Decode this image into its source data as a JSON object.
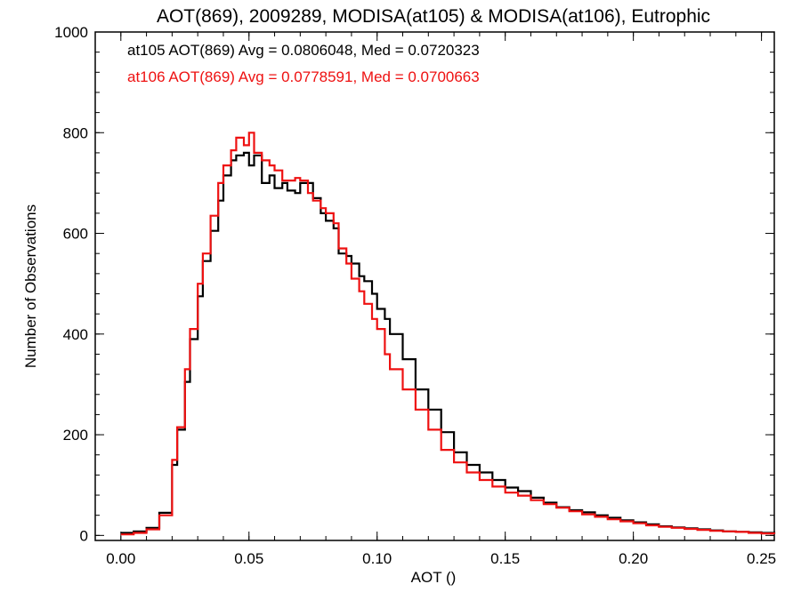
{
  "chart_data": {
    "type": "line",
    "step": true,
    "title": "AOT(869), 2009289, MODISA(at105) & MODISA(at106), Eutrophic",
    "xlabel": "AOT ()",
    "ylabel": "Number of Observations",
    "xlim": [
      -0.01,
      0.255
    ],
    "ylim": [
      -10,
      1000
    ],
    "x_ticks": [
      0.0,
      0.05,
      0.1,
      0.15,
      0.2,
      0.25
    ],
    "x_tick_labels": [
      "0.00",
      "0.05",
      "0.10",
      "0.15",
      "0.20",
      "0.25"
    ],
    "y_ticks": [
      0,
      200,
      400,
      600,
      800,
      1000
    ],
    "y_tick_labels": [
      "0",
      "200",
      "400",
      "600",
      "800",
      "1000"
    ],
    "grid": false,
    "legend_position": "top-left",
    "annotations": [
      "at105 AOT(869) Avg = 0.0806048, Med = 0.0720323",
      "at106 AOT(869) Avg = 0.0778591, Med = 0.0700663"
    ],
    "x": [
      0.0,
      0.005,
      0.01,
      0.015,
      0.02,
      0.022,
      0.025,
      0.027,
      0.03,
      0.032,
      0.035,
      0.038,
      0.04,
      0.043,
      0.045,
      0.048,
      0.05,
      0.052,
      0.055,
      0.058,
      0.06,
      0.063,
      0.065,
      0.068,
      0.07,
      0.073,
      0.075,
      0.078,
      0.08,
      0.083,
      0.085,
      0.088,
      0.09,
      0.093,
      0.095,
      0.098,
      0.1,
      0.103,
      0.105,
      0.11,
      0.115,
      0.12,
      0.125,
      0.13,
      0.135,
      0.14,
      0.145,
      0.15,
      0.155,
      0.16,
      0.165,
      0.17,
      0.175,
      0.18,
      0.185,
      0.19,
      0.195,
      0.2,
      0.205,
      0.21,
      0.215,
      0.22,
      0.225,
      0.23,
      0.235,
      0.24,
      0.245,
      0.25,
      0.255
    ],
    "series": [
      {
        "name": "at105",
        "color": "#000000",
        "values": [
          5,
          8,
          15,
          45,
          140,
          210,
          305,
          390,
          475,
          545,
          605,
          665,
          715,
          745,
          755,
          760,
          735,
          755,
          700,
          715,
          690,
          700,
          685,
          680,
          700,
          700,
          670,
          640,
          625,
          610,
          560,
          555,
          540,
          515,
          505,
          480,
          450,
          430,
          400,
          350,
          290,
          250,
          205,
          165,
          140,
          125,
          110,
          95,
          88,
          75,
          65,
          56,
          50,
          46,
          40,
          35,
          30,
          26,
          22,
          18,
          16,
          14,
          12,
          10,
          8,
          7,
          6,
          5,
          3
        ]
      },
      {
        "name": "at106",
        "color": "#ee1111",
        "values": [
          2,
          5,
          12,
          40,
          150,
          215,
          330,
          410,
          500,
          560,
          635,
          700,
          735,
          765,
          790,
          775,
          800,
          760,
          745,
          735,
          725,
          705,
          705,
          710,
          705,
          680,
          665,
          650,
          640,
          620,
          570,
          540,
          510,
          485,
          460,
          430,
          410,
          360,
          330,
          290,
          250,
          210,
          170,
          145,
          125,
          110,
          97,
          85,
          79,
          70,
          62,
          55,
          48,
          42,
          37,
          32,
          28,
          24,
          20,
          17,
          15,
          13,
          11,
          9,
          8,
          7,
          5,
          4,
          3
        ]
      }
    ]
  }
}
